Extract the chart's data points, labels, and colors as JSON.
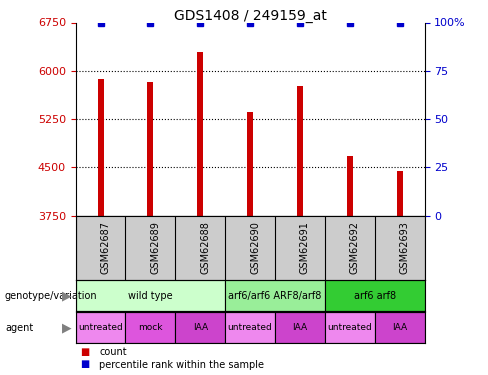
{
  "title": "GDS1408 / 249159_at",
  "samples": [
    "GSM62687",
    "GSM62689",
    "GSM62688",
    "GSM62690",
    "GSM62691",
    "GSM62692",
    "GSM62693"
  ],
  "bar_values": [
    5880,
    5820,
    6290,
    5360,
    5760,
    4680,
    4450
  ],
  "percentile_values": [
    100,
    100,
    100,
    100,
    100,
    100,
    100
  ],
  "ylim_left": [
    3750,
    6750
  ],
  "ylim_right": [
    0,
    100
  ],
  "yticks_left": [
    3750,
    4500,
    5250,
    6000,
    6750
  ],
  "yticks_right": [
    0,
    25,
    50,
    75,
    100
  ],
  "bar_color": "#cc0000",
  "percentile_color": "#0000cc",
  "genotype_groups": [
    {
      "label": "wild type",
      "start": 0,
      "end": 3,
      "color": "#ccffcc"
    },
    {
      "label": "arf6/arf6 ARF8/arf8",
      "start": 3,
      "end": 5,
      "color": "#99ee99"
    },
    {
      "label": "arf6 arf8",
      "start": 5,
      "end": 7,
      "color": "#33cc33"
    }
  ],
  "agent_groups": [
    {
      "label": "untreated",
      "start": 0,
      "end": 1,
      "color": "#ee88ee"
    },
    {
      "label": "mock",
      "start": 1,
      "end": 2,
      "color": "#dd55dd"
    },
    {
      "label": "IAA",
      "start": 2,
      "end": 3,
      "color": "#cc44cc"
    },
    {
      "label": "untreated",
      "start": 3,
      "end": 4,
      "color": "#ee88ee"
    },
    {
      "label": "IAA",
      "start": 4,
      "end": 5,
      "color": "#cc44cc"
    },
    {
      "label": "untreated",
      "start": 5,
      "end": 6,
      "color": "#ee88ee"
    },
    {
      "label": "IAA",
      "start": 6,
      "end": 7,
      "color": "#cc44cc"
    }
  ],
  "legend_count_color": "#cc0000",
  "legend_percentile_color": "#0000cc",
  "bar_width": 0.12,
  "genotype_geno_label_fontsize": 8,
  "agent_label_fontsize": 8,
  "sample_label_fontsize": 7,
  "axis_fontsize": 8,
  "title_fontsize": 10
}
